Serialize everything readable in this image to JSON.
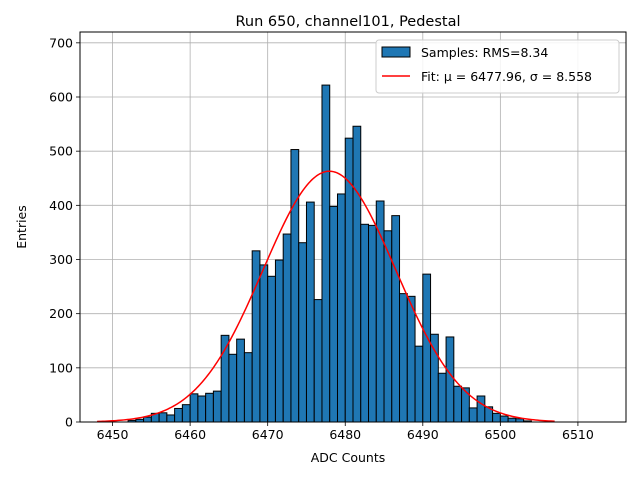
{
  "chart_data": {
    "type": "bar",
    "title": "Run 650, channel101, Pedestal",
    "xlabel": "ADC Counts",
    "ylabel": "Entries",
    "xlim": [
      6445.8,
      6516.2
    ],
    "ylim": [
      0,
      720
    ],
    "xticks": [
      6450,
      6460,
      6470,
      6480,
      6490,
      6500,
      6510
    ],
    "yticks": [
      0,
      100,
      200,
      300,
      400,
      500,
      600,
      700
    ],
    "grid": true,
    "legend_position": "top-right",
    "bin_width": 1,
    "histogram": {
      "name": "Samples: RMS=8.34",
      "color": "#1f77b4",
      "edge_color": "#000000",
      "bin_starts": [
        6452,
        6453,
        6454,
        6455,
        6456,
        6457,
        6458,
        6459,
        6460,
        6461,
        6462,
        6463,
        6464,
        6465,
        6466,
        6467,
        6468,
        6469,
        6470,
        6471,
        6472,
        6473,
        6474,
        6475,
        6476,
        6477,
        6478,
        6479,
        6480,
        6481,
        6482,
        6483,
        6484,
        6485,
        6486,
        6487,
        6488,
        6489,
        6490,
        6491,
        6492,
        6493,
        6494,
        6495,
        6496,
        6497,
        6498,
        6499,
        6500,
        6501,
        6502,
        6503
      ],
      "values": [
        3,
        5,
        9,
        16,
        17,
        13,
        25,
        32,
        52,
        48,
        53,
        57,
        160,
        125,
        153,
        128,
        316,
        290,
        269,
        299,
        347,
        503,
        331,
        406,
        226,
        622,
        398,
        421,
        524,
        546,
        365,
        363,
        408,
        353,
        381,
        237,
        232,
        140,
        273,
        162,
        90,
        157,
        66,
        63,
        26,
        48,
        28,
        16,
        11,
        7,
        6,
        2
      ]
    },
    "fit": {
      "name": "Fit: μ = 6477.96, σ = 8.558",
      "color": "#ff0000",
      "mu": 6477.96,
      "sigma": 8.558,
      "amplitude": 463,
      "x_range": [
        6448.0,
        6507.0
      ]
    }
  }
}
